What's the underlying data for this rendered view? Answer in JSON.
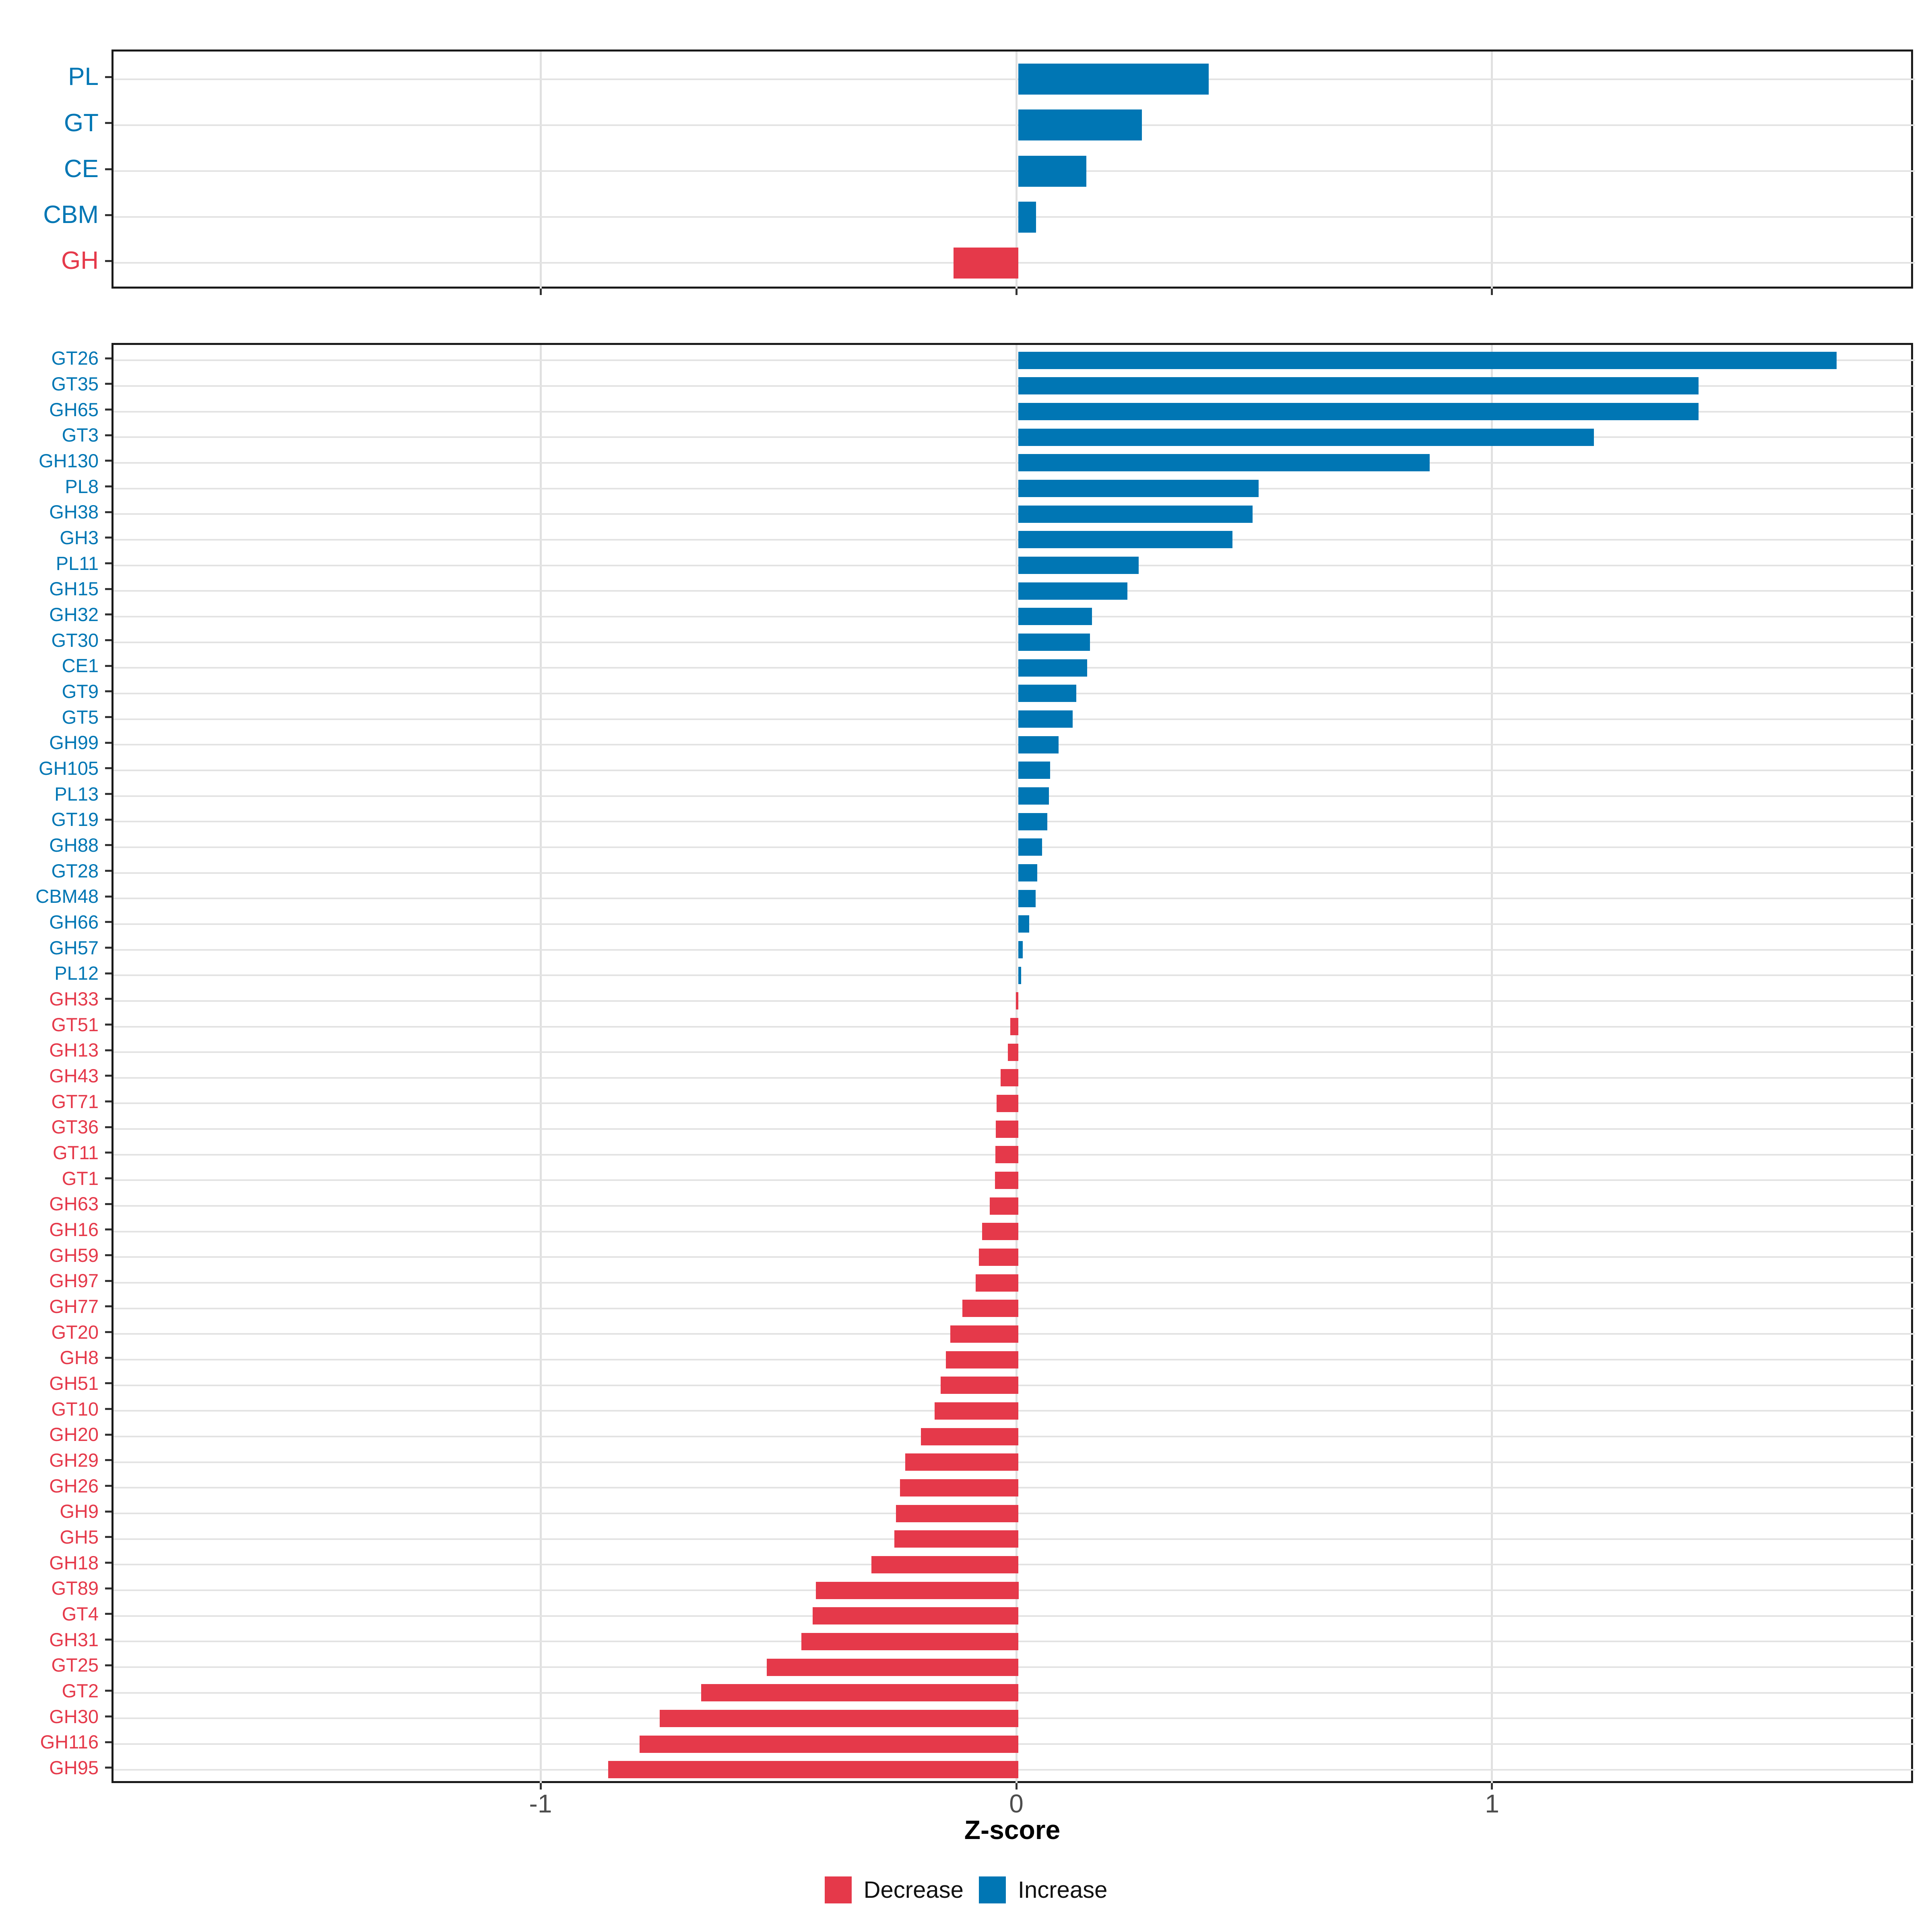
{
  "chart_data": {
    "type": "bar",
    "orientation": "horizontal",
    "title": "",
    "xlabel": "Z-score",
    "ylabel": "",
    "grid": true,
    "xlim": [
      -1.902,
      1.885
    ],
    "x_ticks": [
      {
        "value": -1,
        "label": "-1"
      },
      {
        "value": 0,
        "label": "0"
      },
      {
        "value": 1,
        "label": "1"
      }
    ],
    "colors": {
      "increase": "#0076B4",
      "decrease": "#E5394A"
    },
    "legend_position": "bottom",
    "legend": [
      {
        "label": "Decrease",
        "color": "#E5394A"
      },
      {
        "label": "Increase",
        "color": "#0076B4"
      }
    ],
    "panels": [
      {
        "name": "cazyme-class-summary",
        "categories": [
          "PL",
          "GT",
          "CE",
          "CBM",
          "GH"
        ],
        "values": [
          0.4,
          0.26,
          0.143,
          0.037,
          -0.136
        ]
      },
      {
        "name": "cazyme-family-detail",
        "categories": [
          "GT26",
          "GT35",
          "GH65",
          "GT3",
          "GH130",
          "PL8",
          "GH38",
          "GH3",
          "PL11",
          "GH15",
          "GH32",
          "GT30",
          "CE1",
          "GT9",
          "GT5",
          "GH99",
          "GH105",
          "PL13",
          "GT19",
          "GH88",
          "GT28",
          "CBM48",
          "GH66",
          "GH57",
          "PL12",
          "GH33",
          "GT51",
          "GH13",
          "GH43",
          "GT71",
          "GT36",
          "GT11",
          "GT1",
          "GH63",
          "GH16",
          "GH59",
          "GH97",
          "GH77",
          "GT20",
          "GH8",
          "GH51",
          "GT10",
          "GH20",
          "GH29",
          "GH26",
          "GH9",
          "GH5",
          "GH18",
          "GT89",
          "GT4",
          "GH31",
          "GT25",
          "GT2",
          "GH30",
          "GH116",
          "GH95"
        ],
        "values": [
          1.72,
          1.43,
          1.43,
          1.21,
          0.865,
          0.505,
          0.492,
          0.45,
          0.253,
          0.229,
          0.155,
          0.151,
          0.145,
          0.122,
          0.114,
          0.085,
          0.067,
          0.064,
          0.061,
          0.05,
          0.04,
          0.036,
          0.023,
          0.009,
          0.006,
          -0.005,
          -0.017,
          -0.022,
          -0.037,
          -0.046,
          -0.047,
          -0.048,
          -0.049,
          -0.06,
          -0.076,
          -0.083,
          -0.09,
          -0.118,
          -0.143,
          -0.152,
          -0.163,
          -0.176,
          -0.205,
          -0.238,
          -0.249,
          -0.257,
          -0.261,
          -0.309,
          -0.426,
          -0.432,
          -0.456,
          -0.529,
          -0.667,
          -0.754,
          -0.796,
          -0.862
        ]
      }
    ]
  }
}
